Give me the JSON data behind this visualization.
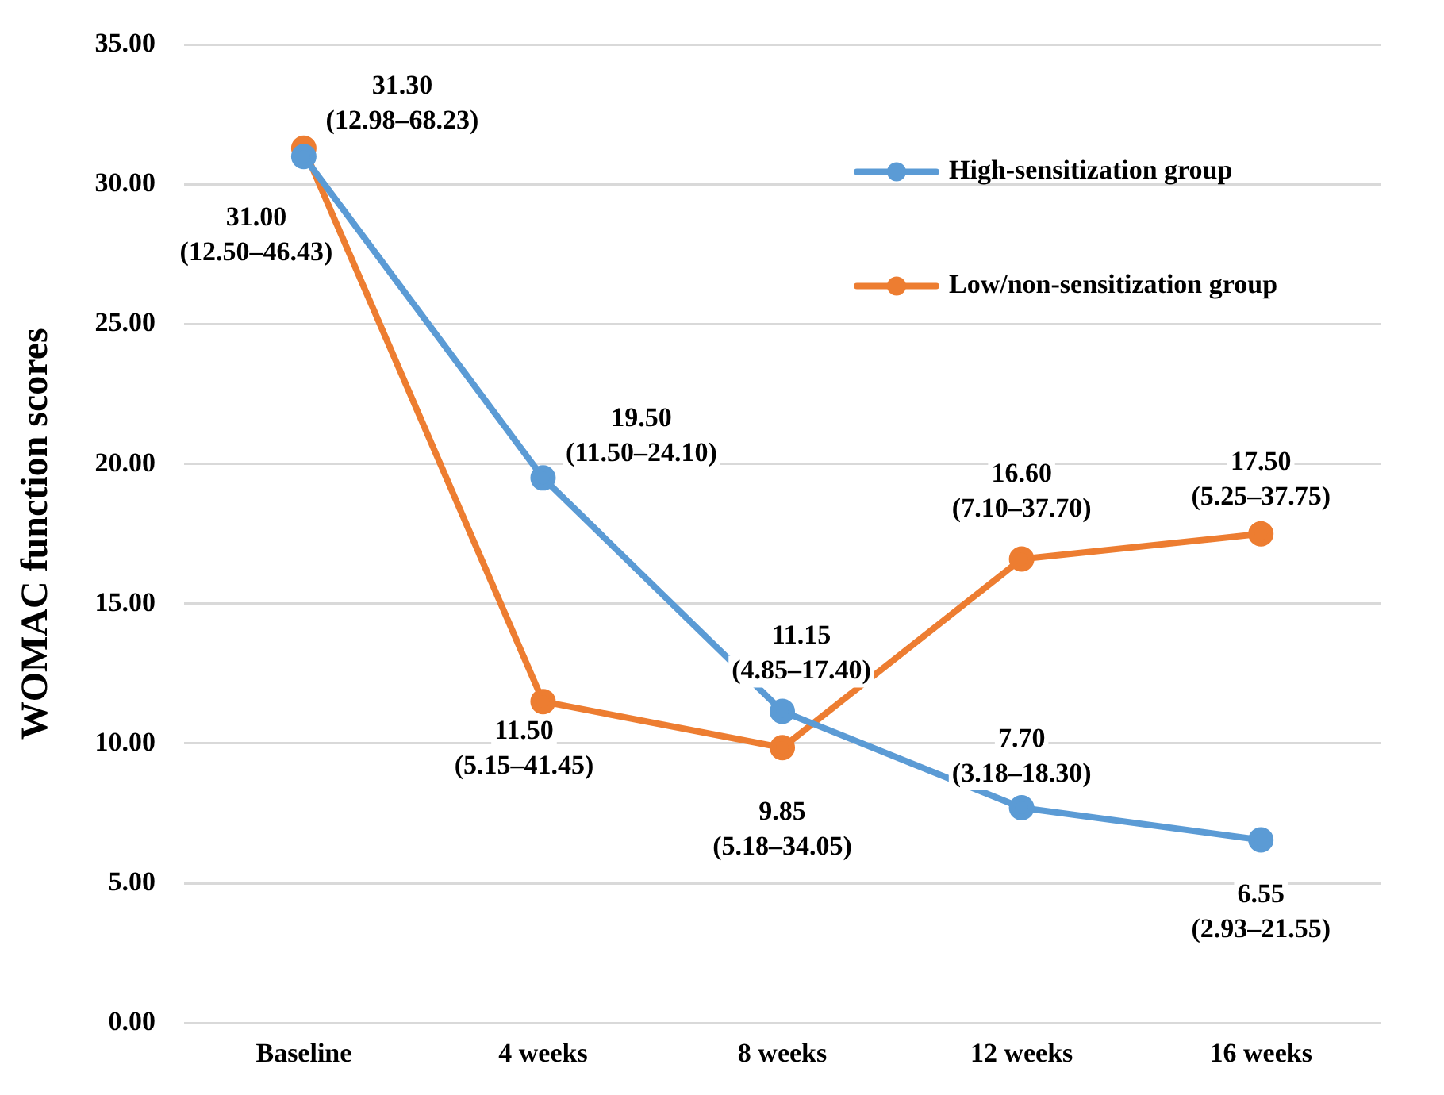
{
  "chart_data": {
    "type": "line",
    "ylabel": "WOMAC function scores",
    "categories": [
      "Baseline",
      "4 weeks",
      "8 weeks",
      "12 weeks",
      "16 weeks"
    ],
    "series": [
      {
        "name": "High-sensitization group",
        "color": "#5b9bd5",
        "values": [
          31.0,
          19.5,
          11.15,
          7.7,
          6.55
        ],
        "value_labels": [
          "31.00\n(12.50–46.43)",
          "19.50\n(11.50–24.10)",
          "11.15\n(4.85–17.40)",
          "7.70\n(3.18–18.30)",
          "6.55\n(2.93–21.55)"
        ]
      },
      {
        "name": "Low/non-sensitization group",
        "color": "#ed7d31",
        "values": [
          31.3,
          11.5,
          9.85,
          16.6,
          17.5
        ],
        "value_labels": [
          "31.30\n(12.98–68.23)",
          "11.50\n(5.15–41.45)",
          "9.85\n(5.18–34.05)",
          "16.60\n(7.10–37.70)",
          "17.50\n(5.25–37.75)"
        ]
      }
    ],
    "ylim": [
      0,
      35
    ],
    "yticks": [
      {
        "value": 0,
        "label": "0.00"
      },
      {
        "value": 5,
        "label": "5.00"
      },
      {
        "value": 10,
        "label": "10.00"
      },
      {
        "value": 15,
        "label": "15.00"
      },
      {
        "value": 20,
        "label": "20.00"
      },
      {
        "value": 25,
        "label": "25.00"
      },
      {
        "value": 30,
        "label": "30.00"
      },
      {
        "value": 35,
        "label": "35.00"
      }
    ],
    "grid": "y",
    "legend": "top right",
    "marker": "circle",
    "line_style": "solid"
  }
}
